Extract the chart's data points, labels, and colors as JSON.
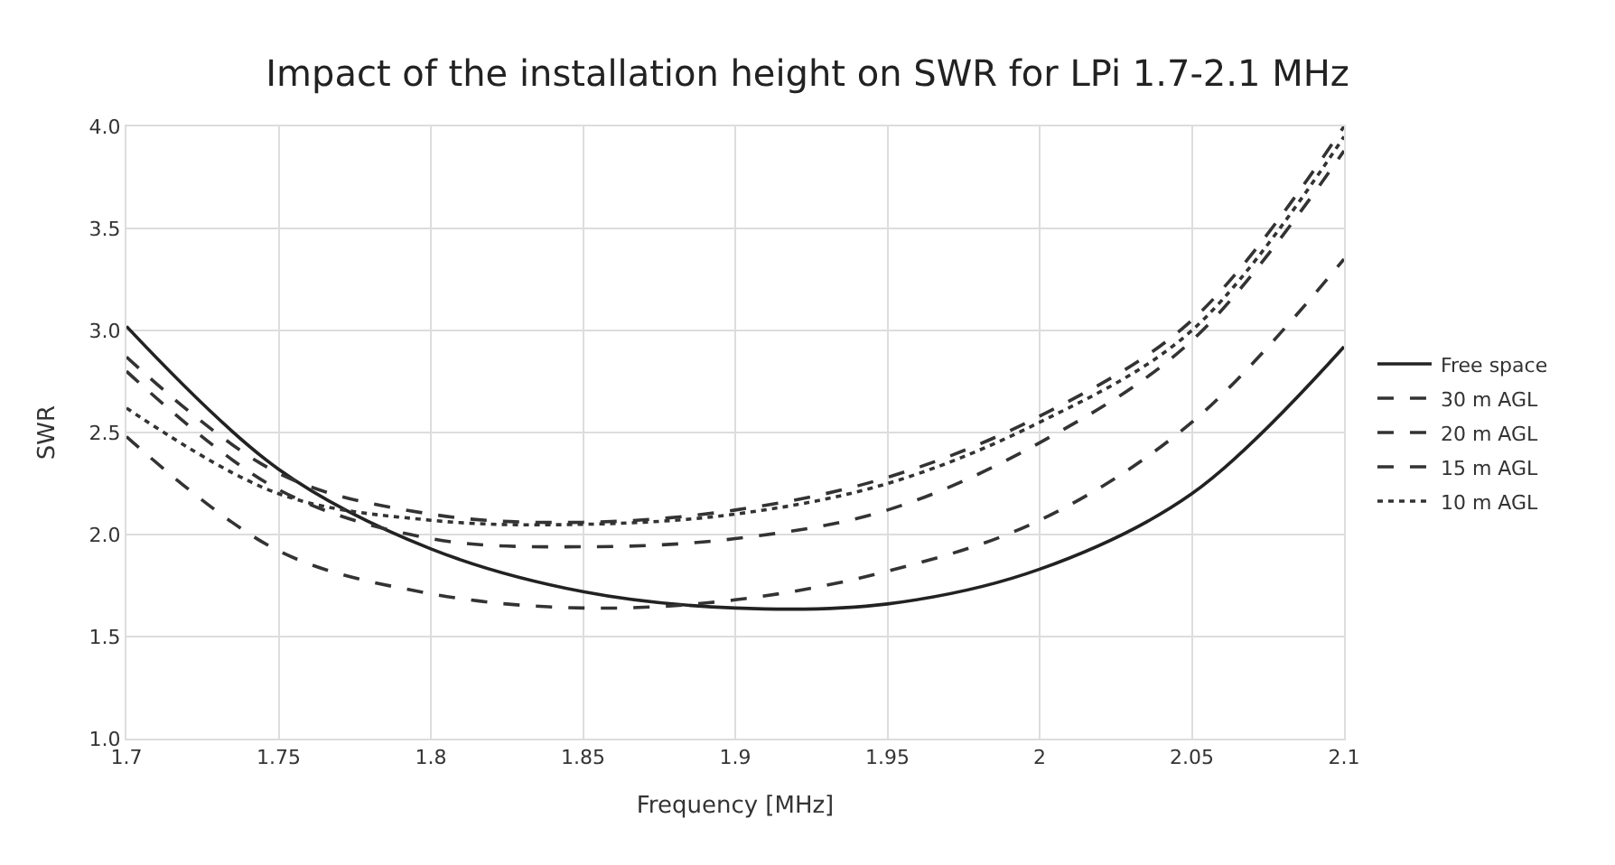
{
  "chart_data": {
    "type": "line",
    "title": "Impact of the installation height on SWR for LPi 1.7-2.1 MHz",
    "xlabel": "Frequency [MHz]",
    "ylabel": "SWR",
    "x": [
      1.7,
      1.75,
      1.8,
      1.85,
      1.9,
      1.95,
      2.0,
      2.05,
      2.1
    ],
    "series": [
      {
        "name": "Free space",
        "color": "#222222",
        "line_style": "solid",
        "values": [
          3.02,
          2.32,
          1.93,
          1.72,
          1.64,
          1.66,
          1.83,
          2.2,
          2.92
        ]
      },
      {
        "name": "30 m AGL",
        "color": "#333333",
        "line_style": "dashed",
        "values": [
          2.48,
          1.92,
          1.71,
          1.64,
          1.68,
          1.82,
          2.07,
          2.55,
          3.35
        ]
      },
      {
        "name": "20 m AGL",
        "color": "#333333",
        "line_style": "dashed",
        "values": [
          2.8,
          2.22,
          1.98,
          1.94,
          1.98,
          2.12,
          2.45,
          2.95,
          3.88
        ]
      },
      {
        "name": "15 m AGL",
        "color": "#333333",
        "line_style": "dashed",
        "values": [
          2.87,
          2.3,
          2.1,
          2.06,
          2.12,
          2.28,
          2.58,
          3.05,
          4.0
        ]
      },
      {
        "name": "10 m AGL",
        "color": "#333333",
        "line_style": "dotted",
        "values": [
          2.62,
          2.2,
          2.07,
          2.05,
          2.1,
          2.25,
          2.55,
          3.0,
          3.95
        ]
      }
    ],
    "xlim": [
      1.7,
      2.1
    ],
    "xticks": [
      {
        "value": 1.7,
        "label": "1.7"
      },
      1.75,
      {
        "value": 1.8,
        "label": "1.8"
      },
      1.85,
      {
        "value": 1.9,
        "label": "1.9"
      },
      1.95,
      {
        "value": 2.0,
        "label": "2"
      },
      2.05,
      {
        "value": 2.1,
        "label": "2.1"
      }
    ],
    "ylim": [
      1.0,
      4.0
    ],
    "yticks": [
      {
        "value": 1.0,
        "label": "1.0"
      },
      1.5,
      {
        "value": 2.0,
        "label": "2.0"
      },
      2.5,
      {
        "value": 3.0,
        "label": "3.0"
      },
      3.5,
      {
        "value": 4.0,
        "label": "4.0"
      }
    ],
    "grid": true,
    "legend": "right",
    "marker": "none"
  }
}
